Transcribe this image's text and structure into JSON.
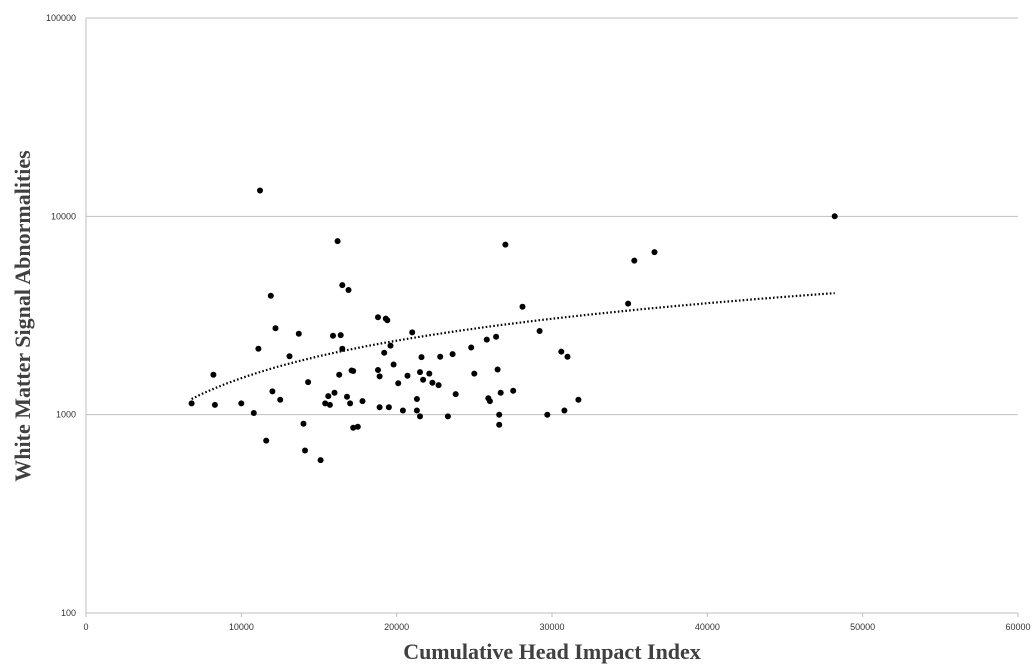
{
  "chart_data": {
    "type": "scatter",
    "title": "",
    "xlabel": "Cumulative Head Impact Index",
    "ylabel": "White Matter Signal Abnormalities",
    "xlim": [
      0,
      60000
    ],
    "ylim": [
      100,
      100000
    ],
    "yscale": "log",
    "grid": {
      "y_major": true,
      "x": false
    },
    "legend": "none",
    "x_ticks": [
      0,
      10000,
      20000,
      30000,
      40000,
      50000,
      60000
    ],
    "x_tick_labels": [
      "0",
      "10000",
      "20000",
      "30000",
      "40000",
      "50000",
      "60000"
    ],
    "y_ticks": [
      100,
      1000,
      10000,
      100000
    ],
    "y_tick_labels": [
      "100",
      "1000",
      "10000",
      "100000"
    ],
    "colors": {
      "points": "#000000",
      "grid": "#bfbfbf",
      "axis": "#bfbfbf",
      "trendline": "#000000"
    },
    "trendline": {
      "style": "dotted",
      "type": "power",
      "x_start": 6800,
      "y_start": 1200,
      "x_end": 48200,
      "y_end": 4100
    },
    "points": [
      [
        6800,
        1140
      ],
      [
        8200,
        1590
      ],
      [
        8300,
        1120
      ],
      [
        10000,
        1140
      ],
      [
        10800,
        1020
      ],
      [
        11100,
        2150
      ],
      [
        11200,
        13500
      ],
      [
        11600,
        740
      ],
      [
        11900,
        3980
      ],
      [
        12000,
        1310
      ],
      [
        12200,
        2730
      ],
      [
        12500,
        1190
      ],
      [
        13100,
        1970
      ],
      [
        13700,
        2560
      ],
      [
        14000,
        900
      ],
      [
        14100,
        660
      ],
      [
        14300,
        1460
      ],
      [
        15100,
        590
      ],
      [
        15400,
        1140
      ],
      [
        15600,
        1240
      ],
      [
        15700,
        1120
      ],
      [
        15900,
        2500
      ],
      [
        16000,
        1290
      ],
      [
        16200,
        7500
      ],
      [
        16300,
        1590
      ],
      [
        16400,
        2520
      ],
      [
        16500,
        4500
      ],
      [
        16500,
        2150
      ],
      [
        16800,
        1230
      ],
      [
        16900,
        4250
      ],
      [
        17000,
        1140
      ],
      [
        17100,
        1670
      ],
      [
        17200,
        1660
      ],
      [
        17200,
        860
      ],
      [
        17500,
        870
      ],
      [
        17800,
        1170
      ],
      [
        18800,
        3100
      ],
      [
        18800,
        1680
      ],
      [
        18900,
        1560
      ],
      [
        18900,
        1090
      ],
      [
        19200,
        2050
      ],
      [
        19300,
        3050
      ],
      [
        19400,
        2990
      ],
      [
        19500,
        1090
      ],
      [
        19600,
        2230
      ],
      [
        19800,
        1790
      ],
      [
        20100,
        1440
      ],
      [
        20400,
        1050
      ],
      [
        20700,
        1570
      ],
      [
        21000,
        2600
      ],
      [
        21300,
        1050
      ],
      [
        21300,
        1200
      ],
      [
        21500,
        980
      ],
      [
        21500,
        1640
      ],
      [
        21600,
        1950
      ],
      [
        21700,
        1500
      ],
      [
        22100,
        1610
      ],
      [
        22300,
        1450
      ],
      [
        22700,
        1410
      ],
      [
        22800,
        1960
      ],
      [
        23300,
        980
      ],
      [
        23600,
        2020
      ],
      [
        23800,
        1270
      ],
      [
        24800,
        2180
      ],
      [
        25000,
        1610
      ],
      [
        25800,
        2390
      ],
      [
        25900,
        1210
      ],
      [
        26000,
        1170
      ],
      [
        26400,
        2470
      ],
      [
        26500,
        1690
      ],
      [
        26600,
        1000
      ],
      [
        26600,
        890
      ],
      [
        26700,
        1290
      ],
      [
        27000,
        7200
      ],
      [
        27500,
        1320
      ],
      [
        28100,
        3500
      ],
      [
        29200,
        2640
      ],
      [
        29700,
        1000
      ],
      [
        30600,
        2080
      ],
      [
        30800,
        1050
      ],
      [
        31000,
        1960
      ],
      [
        31700,
        1190
      ],
      [
        34900,
        3630
      ],
      [
        35300,
        5980
      ],
      [
        36600,
        6600
      ],
      [
        48200,
        10000
      ]
    ]
  }
}
